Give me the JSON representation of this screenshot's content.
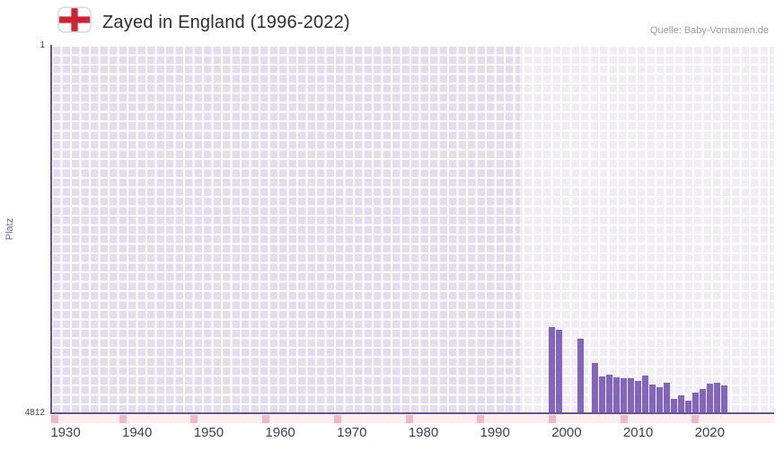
{
  "header": {
    "title": "Zayed in England (1996-2022)",
    "source": "Quelle: Baby-Vornamen.de"
  },
  "chart_data": {
    "type": "bar",
    "title": "Zayed in England (1996-2022)",
    "ylabel": "Platz",
    "y_top_label": "1",
    "y_bottom_label": "4812",
    "ylim": [
      1,
      4812
    ],
    "y_inverted": true,
    "x_ticks": [
      1930,
      1940,
      1950,
      1960,
      1970,
      1980,
      1990,
      2000,
      2010,
      2020
    ],
    "x_range": [
      1928,
      2029
    ],
    "highlight_from_year": 1994,
    "strip_mark_years": [
      1928,
      1938,
      1948,
      1958,
      1968,
      1978,
      1988,
      1998,
      2008,
      2018
    ],
    "years": [
      1996,
      1997,
      1998,
      1999,
      2000,
      2001,
      2002,
      2003,
      2004,
      2005,
      2006,
      2007,
      2008,
      2009,
      2010,
      2011,
      2012,
      2013,
      2014,
      2015,
      2016,
      2017,
      2018,
      2019,
      2020,
      2021,
      2022
    ],
    "ranks": [
      null,
      null,
      3680,
      3720,
      null,
      null,
      3840,
      null,
      4150,
      4330,
      4310,
      4340,
      4350,
      4360,
      4390,
      4320,
      4440,
      4470,
      4410,
      4620,
      4580,
      4650,
      4540,
      4500,
      4430,
      4410,
      4450
    ],
    "legend": [],
    "grid": true,
    "colors": {
      "bar": "#8265c0",
      "axis": "#6a4fa0",
      "plot_background": "#e3deed",
      "grid_line": "#ffffff",
      "highlight": "rgba(255,255,255,0.45)",
      "strip_background": "#fcedf1",
      "strip_mark": "#f3b6c3"
    }
  }
}
